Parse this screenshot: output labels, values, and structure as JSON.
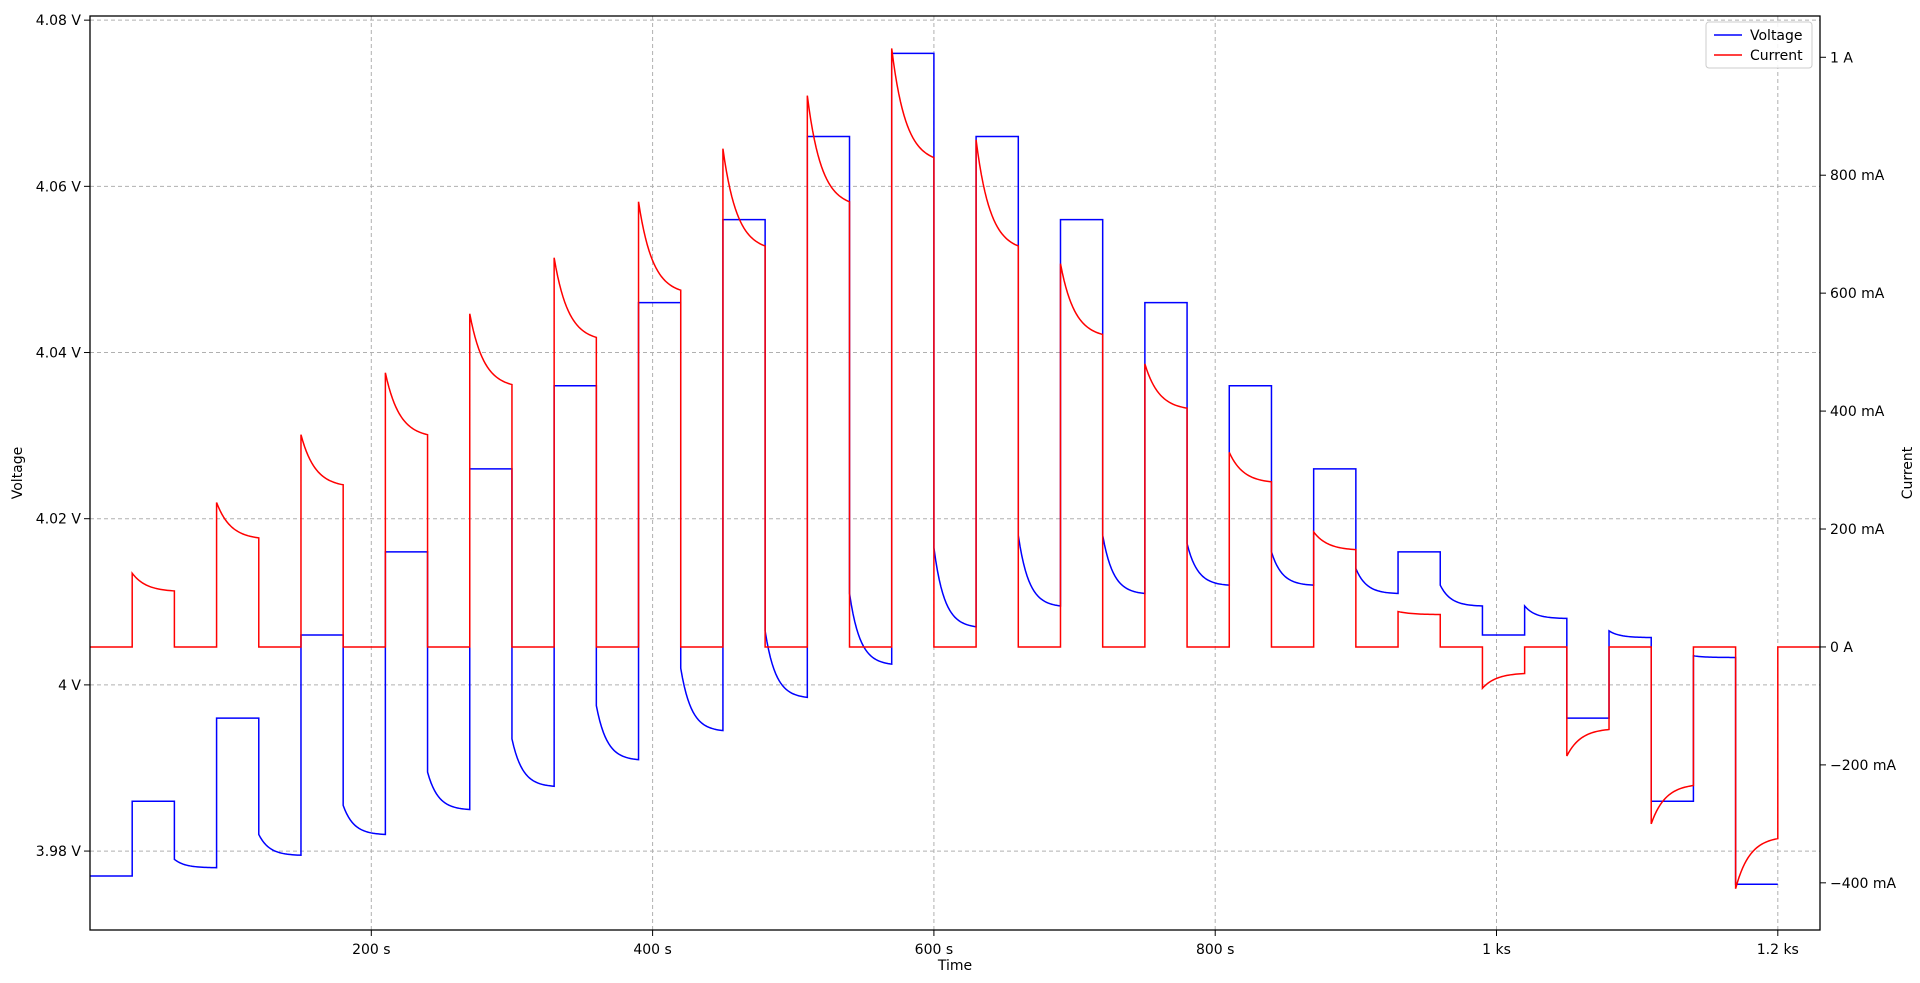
{
  "chart_data": {
    "type": "line",
    "title": "",
    "xlabel": "Time",
    "ylabel": "Voltage",
    "y2label": "Current",
    "xlim": [
      0,
      1230
    ],
    "ylim": [
      3.9705,
      4.0805
    ],
    "y2lim": [
      -480,
      1070
    ],
    "grid": true,
    "legend_position": "top-right",
    "x_ticks": [
      {
        "value": 200,
        "label": "200 s"
      },
      {
        "value": 400,
        "label": "400 s"
      },
      {
        "value": 600,
        "label": "600 s"
      },
      {
        "value": 800,
        "label": "800 s"
      },
      {
        "value": 1000,
        "label": "1 ks"
      },
      {
        "value": 1200,
        "label": "1.2 ks"
      }
    ],
    "y_ticks": [
      {
        "value": 3.98,
        "label": "3.98 V"
      },
      {
        "value": 4.0,
        "label": "4 V"
      },
      {
        "value": 4.02,
        "label": "4.02 V"
      },
      {
        "value": 4.04,
        "label": "4.04 V"
      },
      {
        "value": 4.06,
        "label": "4.06 V"
      },
      {
        "value": 4.08,
        "label": "4.08 V"
      }
    ],
    "y2_ticks": [
      {
        "value": -400,
        "label": "−400 mA"
      },
      {
        "value": -200,
        "label": "−200 mA"
      },
      {
        "value": 0,
        "label": "0 A"
      },
      {
        "value": 200,
        "label": "200 mA"
      },
      {
        "value": 400,
        "label": "400 mA"
      },
      {
        "value": 600,
        "label": "600 mA"
      },
      {
        "value": 800,
        "label": "800 mA"
      },
      {
        "value": 1000,
        "label": "1 A"
      }
    ],
    "series": [
      {
        "name": "Voltage",
        "color": "#0000ff",
        "axis": "left",
        "setpoints": [
          3.977,
          3.986,
          3.996,
          4.006,
          4.016,
          4.026,
          4.036,
          4.046,
          4.056,
          4.066,
          4.076,
          4.066,
          4.056,
          4.046,
          4.036,
          4.026,
          4.016,
          4.006,
          3.996,
          3.986,
          3.976
        ],
        "rest_start": [
          3.979,
          3.982,
          3.9855,
          3.9895,
          3.9935,
          3.9975,
          4.002,
          4.0065,
          4.011,
          4.0165,
          4.018,
          4.018,
          4.017,
          4.016,
          4.014,
          4.012,
          4.0095,
          4.0065,
          4.0035
        ],
        "rest_end": [
          3.978,
          3.9795,
          3.982,
          3.985,
          3.9878,
          3.991,
          3.9945,
          3.9985,
          4.0025,
          4.007,
          4.0095,
          4.011,
          4.012,
          4.012,
          4.011,
          4.0095,
          4.008,
          4.0057,
          4.0033
        ]
      },
      {
        "name": "Current",
        "color": "#ff0000",
        "axis": "right",
        "pulse_start": [
          125,
          245,
          360,
          465,
          565,
          660,
          755,
          845,
          935,
          1015,
          860,
          650,
          480,
          330,
          195,
          60,
          -70,
          -185,
          -300,
          -410
        ],
        "pulse_end": [
          95,
          185,
          275,
          360,
          445,
          525,
          605,
          680,
          755,
          830,
          680,
          530,
          405,
          280,
          165,
          55,
          -45,
          -140,
          -235,
          -325
        ]
      }
    ],
    "legend": [
      "Voltage",
      "Current"
    ]
  }
}
